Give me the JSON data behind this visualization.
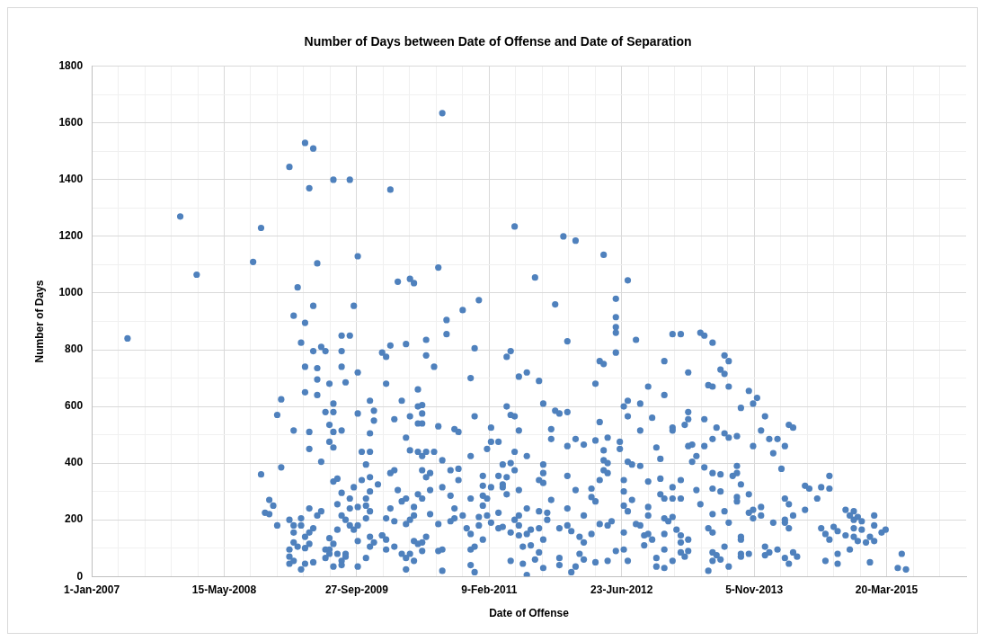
{
  "chart_data": {
    "type": "scatter",
    "title": "Number of Days between Date of Offense and Date of Separation",
    "xlabel": "Date of Offense",
    "ylabel": "Number of Days",
    "color": "#4f81bd",
    "marker": "circle",
    "grid": true,
    "legend": false,
    "xlim": [
      "2007-01-01",
      "2016-01-14"
    ],
    "xticks": [
      {
        "value": "2007-01-01",
        "label": "1-Jan-2007"
      },
      {
        "value": "2007-04-11",
        "label": null
      },
      {
        "value": "2007-07-20",
        "label": null
      },
      {
        "value": "2007-10-28",
        "label": null
      },
      {
        "value": "2008-02-05",
        "label": null
      },
      {
        "value": "2008-05-15",
        "label": "15-May-2008"
      },
      {
        "value": "2008-08-23",
        "label": null
      },
      {
        "value": "2008-12-01",
        "label": null
      },
      {
        "value": "2009-03-11",
        "label": null
      },
      {
        "value": "2009-06-19",
        "label": null
      },
      {
        "value": "2009-09-27",
        "label": "27-Sep-2009"
      },
      {
        "value": "2010-01-05",
        "label": null
      },
      {
        "value": "2010-04-15",
        "label": null
      },
      {
        "value": "2010-07-24",
        "label": null
      },
      {
        "value": "2010-11-01",
        "label": null
      },
      {
        "value": "2011-02-09",
        "label": "9-Feb-2011"
      },
      {
        "value": "2011-05-20",
        "label": null
      },
      {
        "value": "2011-08-28",
        "label": null
      },
      {
        "value": "2011-12-06",
        "label": null
      },
      {
        "value": "2012-03-15",
        "label": null
      },
      {
        "value": "2012-06-23",
        "label": "23-Jun-2012"
      },
      {
        "value": "2012-10-01",
        "label": null
      },
      {
        "value": "2013-01-09",
        "label": null
      },
      {
        "value": "2013-04-19",
        "label": null
      },
      {
        "value": "2013-07-28",
        "label": null
      },
      {
        "value": "2013-11-05",
        "label": "5-Nov-2013"
      },
      {
        "value": "2014-02-13",
        "label": null
      },
      {
        "value": "2014-05-24",
        "label": null
      },
      {
        "value": "2014-09-01",
        "label": null
      },
      {
        "value": "2014-12-10",
        "label": null
      },
      {
        "value": "2015-03-20",
        "label": "20-Mar-2015"
      },
      {
        "value": "2015-06-28",
        "label": null
      },
      {
        "value": "2015-10-06",
        "label": null
      }
    ],
    "ylim": [
      0,
      1800
    ],
    "yticks": [
      0,
      {
        "value": 100,
        "label": null
      },
      200,
      {
        "value": 300,
        "label": null
      },
      400,
      {
        "value": 500,
        "label": null
      },
      600,
      {
        "value": 700,
        "label": null
      },
      800,
      {
        "value": 900,
        "label": null
      },
      1000,
      {
        "value": 1100,
        "label": null
      },
      1200,
      {
        "value": 1300,
        "label": null
      },
      1400,
      {
        "value": 1500,
        "label": null
      },
      1600,
      {
        "value": 1700,
        "label": null
      },
      1800
    ],
    "x": [
      "2007-05-16",
      "2007-12-01",
      "2008-02-01",
      "2008-09-01",
      "2008-10-01",
      "2008-10-01",
      "2008-10-16",
      "2008-11-01",
      "2008-11-16",
      "2008-12-16",
      "2008-12-16",
      "2008-12-01",
      "2008-11-01",
      "2008-12-01",
      "2009-03-16",
      "2009-04-16",
      "2009-01-16",
      "2009-07-01",
      "2009-09-01",
      "2009-04-01",
      "2009-05-01",
      "2009-10-01",
      "2009-02-16",
      "2009-04-16",
      "2009-09-16",
      "2009-02-01",
      "2009-03-16",
      "2009-08-01",
      "2009-09-01",
      "2009-03-01",
      "2009-05-16",
      "2009-04-16",
      "2009-06-01",
      "2009-08-01",
      "2010-01-01",
      "2009-03-16",
      "2009-05-01",
      "2009-08-01",
      "2009-10-01",
      "2009-05-01",
      "2009-06-16",
      "2009-08-16",
      "2009-03-16",
      "2009-05-01",
      "2009-07-01",
      "2009-11-16",
      "2009-06-01",
      "2009-07-01",
      "2009-10-01",
      "2009-12-01",
      "2009-12-01",
      "2009-02-01",
      "2009-04-01",
      "2009-06-16",
      "2009-07-01",
      "2009-08-01",
      "2009-11-16",
      "2009-06-16",
      "2009-04-01",
      "2009-07-01",
      "2009-10-16",
      "2009-11-16",
      "2009-05-16",
      "2009-11-01",
      "2009-07-01",
      "2009-07-16",
      "2009-10-16",
      "2009-11-16",
      "2009-12-16",
      "2009-08-01",
      "2009-09-16",
      "2009-11-16",
      "2009-09-01",
      "2009-11-01",
      "2009-04-01",
      "2009-05-16",
      "2009-05-01",
      "2009-07-16",
      "2009-09-01",
      "2009-10-01",
      "2009-11-01",
      "2009-11-16",
      "2009-08-01",
      "2009-08-16",
      "2009-11-01",
      "2009-01-16",
      "2009-03-01",
      "2009-02-01",
      "2009-03-01",
      "2009-04-16",
      "2009-09-01",
      "2009-10-01",
      "2009-09-16",
      "2009-07-16",
      "2009-02-01",
      "2009-04-01",
      "2009-03-16",
      "2009-06-16",
      "2009-11-16",
      "2010-01-01",
      "2009-02-01",
      "2009-04-01",
      "2009-07-01",
      "2009-10-01",
      "2009-12-01",
      "2009-02-16",
      "2009-03-16",
      "2009-01-16",
      "2009-06-01",
      "2009-06-16",
      "2009-11-16",
      "2009-01-16",
      "2009-06-16",
      "2009-07-16",
      "2009-08-16",
      "2009-08-16",
      "2009-06-01",
      "2009-11-01",
      "2009-08-01",
      "2009-01-16",
      "2009-02-01",
      "2009-03-16",
      "2009-04-16",
      "2009-07-01",
      "2009-08-01",
      "2009-10-01",
      "2009-03-01",
      "2010-08-16",
      "2010-02-01",
      "2011-05-16",
      "2011-11-16",
      "2012-01-01",
      "2012-04-16",
      "2010-08-01",
      "2010-03-01",
      "2010-04-16",
      "2010-05-01",
      "2011-08-01",
      "2012-07-16",
      "2011-01-01",
      "2010-11-01",
      "2010-09-01",
      "2011-10-16",
      "2012-06-01",
      "2012-06-01",
      "2012-06-01",
      "2012-06-01",
      "2010-09-01",
      "2011-12-01",
      "2012-08-16",
      "2010-02-01",
      "2010-04-01",
      "2010-06-16",
      "2010-01-16",
      "2010-06-16",
      "2010-12-16",
      "2011-05-01",
      "2011-04-16",
      "2012-06-01",
      "2010-07-16",
      "2012-12-01",
      "2012-04-01",
      "2012-04-16",
      "2010-12-01",
      "2011-06-01",
      "2011-07-01",
      "2011-08-16",
      "2012-03-16",
      "2012-10-01",
      "2010-01-16",
      "2012-12-01",
      "2010-05-16",
      "2010-03-16",
      "2010-05-16",
      "2010-06-01",
      "2011-04-16",
      "2011-09-01",
      "2012-07-01",
      "2012-07-16",
      "2012-09-01",
      "2010-06-01",
      "2010-04-16",
      "2010-02-16",
      "2010-12-16",
      "2011-05-01",
      "2011-05-16",
      "2011-10-16",
      "2011-11-01",
      "2011-12-01",
      "2012-07-16",
      "2010-05-16",
      "2010-06-01",
      "2010-08-01",
      "2010-10-01",
      "2010-10-16",
      "2011-02-16",
      "2011-06-01",
      "2011-10-01",
      "2012-04-01",
      "2012-10-16",
      "2012-09-01",
      "2010-04-01",
      "2011-10-01",
      "2012-01-01",
      "2012-03-16",
      "2012-05-01",
      "2011-02-16",
      "2011-03-16",
      "2012-02-01",
      "2012-06-16",
      "2010-04-16",
      "2010-05-16",
      "2010-06-01",
      "2010-06-16",
      "2010-07-16",
      "2011-02-01",
      "2011-05-16",
      "2011-12-01",
      "2012-04-16",
      "2012-06-16",
      "2012-11-01",
      "2010-12-01",
      "2011-07-01",
      "2012-11-16",
      "2010-08-16",
      "2011-04-01",
      "2011-05-01",
      "2011-09-01",
      "2012-04-16",
      "2012-05-01",
      "2012-07-16",
      "2012-08-01",
      "2012-09-01",
      "2010-02-01",
      "2010-02-16",
      "2010-09-16",
      "2010-10-16",
      "2011-05-16",
      "2010-06-01",
      "2010-07-01",
      "2010-06-16",
      "2011-09-01",
      "2011-12-01",
      "2012-04-16",
      "2012-05-01",
      "2012-11-16",
      "2010-03-01",
      "2010-07-01",
      "2010-08-16",
      "2010-10-16",
      "2011-01-16",
      "2011-01-16",
      "2011-02-16",
      "2011-03-16",
      "2011-04-01",
      "2011-04-01",
      "2011-04-16",
      "2011-04-16",
      "2011-06-01",
      "2011-08-16",
      "2011-09-01",
      "2012-01-01",
      "2012-03-01",
      "2012-04-01",
      "2012-07-01",
      "2012-07-01",
      "2012-10-01",
      "2012-11-16",
      "2012-12-01",
      "2010-03-16",
      "2010-04-01",
      "2010-05-16",
      "2010-06-01",
      "2010-09-16",
      "2010-12-01",
      "2011-01-16",
      "2011-02-01",
      "2011-10-01",
      "2012-03-01",
      "2012-03-16",
      "2012-08-01",
      "2010-02-01",
      "2010-05-01",
      "2010-10-01",
      "2011-01-16",
      "2011-07-01",
      "2011-08-16",
      "2011-09-16",
      "2011-12-01",
      "2012-07-01",
      "2012-07-16",
      "2012-10-01",
      "2010-01-16",
      "2010-02-16",
      "2010-04-01",
      "2010-04-16",
      "2010-05-01",
      "2010-07-01",
      "2010-08-01",
      "2010-09-16",
      "2010-10-01",
      "2010-11-01",
      "2011-01-01",
      "2011-02-01",
      "2011-01-01",
      "2011-02-16",
      "2011-03-16",
      "2011-04-01",
      "2011-03-16",
      "2011-05-16",
      "2011-06-01",
      "2011-06-01",
      "2011-08-16",
      "2011-09-16",
      "2011-11-01",
      "2011-12-01",
      "2012-02-01",
      "2012-04-01",
      "2012-05-01",
      "2012-05-16",
      "2012-08-16",
      "2012-09-01",
      "2012-10-01",
      "2012-12-01",
      "2010-01-01",
      "2010-01-16",
      "2010-05-01",
      "2010-05-16",
      "2010-06-01",
      "2010-06-16",
      "2010-11-16",
      "2010-12-01",
      "2011-01-16",
      "2011-05-01",
      "2011-06-01",
      "2011-07-01",
      "2011-07-16",
      "2011-09-01",
      "2011-12-16",
      "2012-01-16",
      "2012-02-01",
      "2012-03-01",
      "2012-07-01",
      "2012-09-16",
      "2012-10-01",
      "2012-10-16",
      "2012-12-01",
      "2010-01-16",
      "2010-02-16",
      "2010-03-16",
      "2010-04-16",
      "2010-04-01",
      "2010-05-01",
      "2010-06-01",
      "2010-08-01",
      "2010-08-16",
      "2010-12-01",
      "2010-12-16",
      "2011-06-16",
      "2011-07-16",
      "2011-08-16",
      "2012-01-16",
      "2012-02-01",
      "2012-06-01",
      "2012-07-01",
      "2012-09-16",
      "2012-12-01",
      "2011-05-01",
      "2011-06-16",
      "2011-08-01",
      "2011-11-01",
      "2012-03-16",
      "2012-05-01",
      "2012-07-16",
      "2012-11-01",
      "2012-11-01",
      "2012-12-01",
      "2010-04-01",
      "2010-08-16",
      "2010-12-01",
      "2010-12-16",
      "2011-09-01",
      "2011-11-01",
      "2011-12-16",
      "2012-01-01",
      "2011-07-01",
      "2013-01-01",
      "2013-02-01",
      "2013-04-16",
      "2013-05-01",
      "2013-06-01",
      "2013-03-01",
      "2013-07-16",
      "2013-08-01",
      "2013-07-01",
      "2013-07-16",
      "2013-05-16",
      "2013-06-01",
      "2013-08-01",
      "2013-10-16",
      "2013-11-16",
      "2013-11-01",
      "2013-09-16",
      "2013-12-16",
      "2013-03-01",
      "2013-03-01",
      "2013-02-16",
      "2013-05-01",
      "2013-01-01",
      "2013-01-01",
      "2013-06-16",
      "2013-07-16",
      "2013-08-01",
      "2013-09-01",
      "2013-06-01",
      "2013-12-01",
      "2014-01-01",
      "2014-02-01",
      "2014-03-16",
      "2014-04-01",
      "2013-11-01",
      "2014-03-01",
      "2014-01-16",
      "2013-03-01",
      "2013-03-16",
      "2013-05-01",
      "2013-04-01",
      "2013-03-16",
      "2013-05-01",
      "2013-06-01",
      "2013-07-01",
      "2013-08-16",
      "2013-09-01",
      "2013-09-01",
      "2014-02-16",
      "2013-02-01",
      "2013-01-01",
      "2013-04-01",
      "2013-06-01",
      "2013-07-01",
      "2013-09-16",
      "2013-10-16",
      "2013-01-01",
      "2013-02-01",
      "2013-04-16",
      "2013-09-01",
      "2013-09-01",
      "2014-05-16",
      "2014-06-01",
      "2014-07-16",
      "2014-08-16",
      "2014-08-16",
      "2014-07-01",
      "2014-03-01",
      "2014-03-16",
      "2013-06-01",
      "2013-07-16",
      "2012-12-16",
      "2013-01-01",
      "2013-08-01",
      "2013-11-01",
      "2013-10-16",
      "2013-11-01",
      "2013-12-01",
      "2013-12-01",
      "2014-01-16",
      "2014-03-01",
      "2014-03-01",
      "2014-04-01",
      "2014-03-16",
      "2014-05-16",
      "2014-10-16",
      "2014-11-16",
      "2014-11-01",
      "2014-12-01",
      "2014-11-16",
      "2014-12-16",
      "2015-02-01",
      "2015-02-01",
      "2014-07-16",
      "2014-08-01",
      "2014-08-16",
      "2014-09-01",
      "2014-09-16",
      "2014-10-16",
      "2014-11-16",
      "2014-11-16",
      "2014-12-01",
      "2014-12-16",
      "2015-01-01",
      "2015-01-16",
      "2015-02-01",
      "2015-03-01",
      "2015-03-16",
      "2013-01-16",
      "2013-02-01",
      "2013-05-16",
      "2013-06-01",
      "2013-02-01",
      "2013-03-01",
      "2013-02-01",
      "2013-03-01",
      "2013-02-16",
      "2013-06-01",
      "2013-06-16",
      "2013-07-16",
      "2013-09-16",
      "2013-09-16",
      "2013-09-16",
      "2013-10-16",
      "2013-09-16",
      "2013-06-01",
      "2013-07-01",
      "2013-12-16",
      "2014-01-01",
      "2013-12-16",
      "2014-02-01",
      "2014-03-01",
      "2014-03-16",
      "2014-04-01",
      "2014-04-16",
      "2013-01-01",
      "2013-05-16",
      "2013-08-01",
      "2014-08-01",
      "2014-09-16",
      "2014-09-16",
      "2014-11-01",
      "2015-01-16",
      "2015-05-16",
      "2015-05-01",
      "2015-06-01"
    ],
    "values": [
      840,
      1270,
      1065,
      1110,
      1230,
      360,
      225,
      270,
      250,
      385,
      625,
      570,
      220,
      180,
      1530,
      1510,
      1445,
      1400,
      1400,
      1370,
      1105,
      1130,
      1020,
      955,
      955,
      920,
      895,
      850,
      850,
      825,
      810,
      795,
      795,
      795,
      790,
      740,
      735,
      740,
      720,
      695,
      680,
      685,
      650,
      640,
      610,
      620,
      580,
      580,
      575,
      585,
      550,
      515,
      510,
      535,
      510,
      515,
      505,
      475,
      450,
      455,
      440,
      440,
      405,
      395,
      335,
      345,
      340,
      350,
      325,
      295,
      315,
      300,
      275,
      275,
      240,
      230,
      215,
      255,
      240,
      245,
      250,
      230,
      215,
      200,
      205,
      200,
      205,
      180,
      180,
      170,
      180,
      180,
      165,
      165,
      155,
      155,
      140,
      135,
      140,
      145,
      120,
      115,
      115,
      125,
      120,
      105,
      100,
      95,
      95,
      95,
      105,
      70,
      80,
      80,
      80,
      70,
      65,
      65,
      55,
      45,
      55,
      45,
      50,
      35,
      40,
      35,
      25,
      1635,
      1365,
      1235,
      1200,
      1185,
      1135,
      1090,
      1040,
      1050,
      1035,
      1055,
      1045,
      975,
      940,
      905,
      960,
      980,
      915,
      880,
      860,
      855,
      830,
      835,
      815,
      820,
      835,
      775,
      780,
      805,
      795,
      775,
      790,
      740,
      760,
      760,
      750,
      700,
      705,
      720,
      690,
      680,
      670,
      680,
      640,
      660,
      620,
      600,
      605,
      600,
      610,
      600,
      620,
      610,
      575,
      565,
      555,
      565,
      570,
      565,
      585,
      575,
      580,
      565,
      540,
      540,
      530,
      520,
      510,
      525,
      515,
      520,
      545,
      560,
      515,
      490,
      485,
      485,
      480,
      490,
      475,
      475,
      465,
      475,
      445,
      440,
      425,
      440,
      440,
      450,
      440,
      460,
      445,
      450,
      455,
      425,
      425,
      415,
      410,
      395,
      400,
      395,
      410,
      400,
      405,
      395,
      390,
      365,
      375,
      375,
      380,
      375,
      375,
      365,
      350,
      365,
      355,
      375,
      365,
      345,
      305,
      305,
      315,
      340,
      355,
      320,
      315,
      355,
      315,
      325,
      350,
      290,
      305,
      340,
      330,
      305,
      310,
      340,
      340,
      300,
      335,
      290,
      275,
      265,
      275,
      290,
      275,
      285,
      275,
      285,
      275,
      270,
      280,
      265,
      270,
      240,
      245,
      240,
      250,
      240,
      230,
      225,
      240,
      250,
      230,
      245,
      205,
      195,
      185,
      200,
      215,
      220,
      185,
      195,
      205,
      215,
      210,
      215,
      180,
      190,
      225,
      175,
      170,
      200,
      215,
      180,
      170,
      200,
      170,
      180,
      215,
      185,
      180,
      195,
      185,
      180,
      215,
      205,
      145,
      130,
      125,
      115,
      120,
      140,
      170,
      150,
      130,
      155,
      145,
      150,
      165,
      130,
      160,
      140,
      120,
      150,
      155,
      145,
      150,
      130,
      150,
      95,
      105,
      80,
      80,
      65,
      55,
      90,
      90,
      95,
      95,
      105,
      105,
      110,
      85,
      80,
      60,
      90,
      95,
      110,
      95,
      55,
      45,
      60,
      65,
      50,
      55,
      55,
      65,
      35,
      30,
      25,
      20,
      40,
      15,
      30,
      40,
      15,
      35,
      5,
      855,
      855,
      860,
      850,
      825,
      720,
      780,
      760,
      730,
      715,
      675,
      670,
      670,
      655,
      630,
      610,
      595,
      565,
      580,
      555,
      535,
      555,
      525,
      515,
      525,
      505,
      490,
      495,
      485,
      515,
      485,
      485,
      535,
      525,
      460,
      460,
      435,
      460,
      465,
      460,
      425,
      405,
      385,
      365,
      360,
      355,
      365,
      390,
      380,
      340,
      315,
      305,
      310,
      300,
      325,
      290,
      275,
      275,
      255,
      280,
      265,
      320,
      310,
      315,
      355,
      310,
      275,
      275,
      255,
      220,
      230,
      195,
      210,
      190,
      235,
      225,
      205,
      245,
      215,
      190,
      190,
      200,
      215,
      170,
      235,
      235,
      230,
      215,
      210,
      200,
      195,
      215,
      180,
      170,
      150,
      130,
      175,
      160,
      145,
      170,
      140,
      125,
      165,
      120,
      140,
      125,
      155,
      165,
      165,
      145,
      170,
      155,
      120,
      130,
      85,
      90,
      70,
      85,
      75,
      105,
      140,
      130,
      80,
      80,
      70,
      55,
      60,
      105,
      85,
      75,
      95,
      65,
      45,
      85,
      70,
      55,
      20,
      35,
      55,
      80,
      45,
      95,
      50,
      80,
      30,
      25
    ]
  }
}
